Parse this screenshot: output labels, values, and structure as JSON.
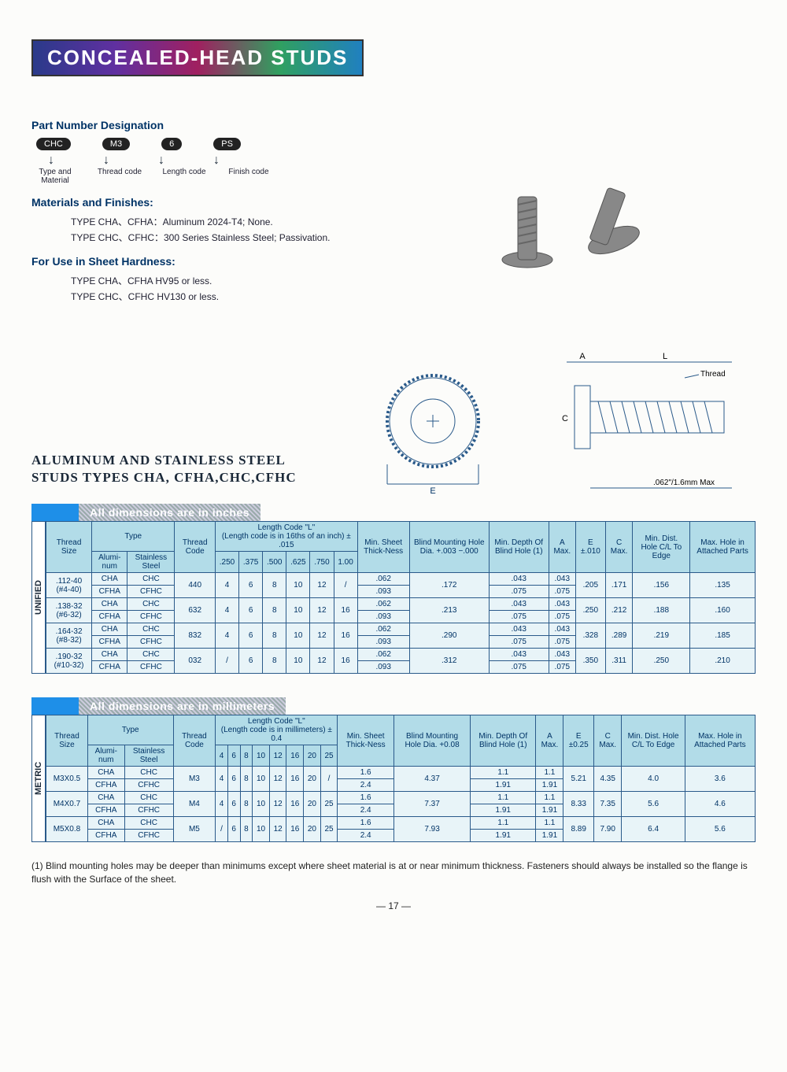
{
  "title": "CONCEALED-HEAD STUDS",
  "partNumber": {
    "heading": "Part Number Designation",
    "chips": [
      "CHC",
      "M3",
      "6",
      "PS"
    ],
    "labels": [
      "Type and Material",
      "Thread code",
      "Length code",
      "Finish code"
    ]
  },
  "materials": {
    "heading": "Materials and Finishes:",
    "lines": [
      "TYPE CHA、CFHA：Aluminum 2024-T4; None.",
      "TYPE CHC、CFHC：300 Series Stainless Steel; Passivation."
    ]
  },
  "hardness": {
    "heading": "For Use in Sheet Hardness:",
    "lines": [
      "TYPE CHA、CFHA  HV95 or less.",
      "TYPE CHC、CFHC  HV130 or less."
    ]
  },
  "productHeading": "ALUMINUM AND STAINLESS STEEL STUDS TYPES CHA, CFHA,CHC,CFHC",
  "diagram": {
    "labels": {
      "A": "A",
      "L": "L",
      "Thread": "Thread",
      "C": "C",
      "E": "E"
    },
    "note": ".062\"/1.6mm Max"
  },
  "unified": {
    "banner": "All dimensions are in inches",
    "vlabel": "UNIFIED",
    "lengthHeader": "Length Code \"L\"",
    "lengthSub": "(Length code is in 16ths of an inch) ± .015",
    "lengthCols": [
      ".250",
      ".375",
      ".500",
      ".625",
      ".750",
      "1.00"
    ],
    "headers": {
      "threadSize": "Thread Size",
      "type": "Type",
      "alum": "Alumi-num",
      "ss": "Stainless Steel",
      "threadCode": "Thread Code",
      "minSheet": "Min. Sheet Thick-Ness",
      "blind": "Blind Mounting Hole Dia. +.003 −.000",
      "minDepth": "Min. Depth Of Blind Hole (1)",
      "A": "A Max.",
      "E": "E ±.010",
      "C": "C Max.",
      "minDist": "Min. Dist. Hole C/L To Edge",
      "maxHole": "Max. Hole in Attached Parts"
    },
    "rows": [
      {
        "size": ".112-40 (#4-40)",
        "code": "440",
        "len": [
          "4",
          "6",
          "8",
          "10",
          "12",
          "/"
        ],
        "st1": ".062",
        "st2": ".093",
        "blind": ".172",
        "d1": ".043",
        "d2": ".075",
        "a1": ".043",
        "a2": ".075",
        "E": ".205",
        "C": ".171",
        "dist": ".156",
        "max": ".135"
      },
      {
        "size": ".138-32 (#6-32)",
        "code": "632",
        "len": [
          "4",
          "6",
          "8",
          "10",
          "12",
          "16"
        ],
        "st1": ".062",
        "st2": ".093",
        "blind": ".213",
        "d1": ".043",
        "d2": ".075",
        "a1": ".043",
        "a2": ".075",
        "E": ".250",
        "C": ".212",
        "dist": ".188",
        "max": ".160"
      },
      {
        "size": ".164-32 (#8-32)",
        "code": "832",
        "len": [
          "4",
          "6",
          "8",
          "10",
          "12",
          "16"
        ],
        "st1": ".062",
        "st2": ".093",
        "blind": ".290",
        "d1": ".043",
        "d2": ".075",
        "a1": ".043",
        "a2": ".075",
        "E": ".328",
        "C": ".289",
        "dist": ".219",
        "max": ".185"
      },
      {
        "size": ".190-32 (#10-32)",
        "code": "032",
        "len": [
          "/",
          "6",
          "8",
          "10",
          "12",
          "16"
        ],
        "st1": ".062",
        "st2": ".093",
        "blind": ".312",
        "d1": ".043",
        "d2": ".075",
        "a1": ".043",
        "a2": ".075",
        "E": ".350",
        "C": ".311",
        "dist": ".250",
        "max": ".210"
      }
    ]
  },
  "metric": {
    "banner": "All dimensions are in millimeters",
    "vlabel": "METRIC",
    "lengthHeader": "Length Code \"L\"",
    "lengthSub": "(Length code is in millimeters) ± 0.4",
    "lengthCols": [
      "4",
      "6",
      "8",
      "10",
      "12",
      "16",
      "20",
      "25"
    ],
    "headers": {
      "blind": "Blind Mounting Hole Dia. +0.08",
      "E": "E ±0.25"
    },
    "rows": [
      {
        "size": "M3X0.5",
        "code": "M3",
        "len": [
          "4",
          "6",
          "8",
          "10",
          "12",
          "16",
          "20",
          "/"
        ],
        "st1": "1.6",
        "st2": "2.4",
        "blind": "4.37",
        "d1": "1.1",
        "d2": "1.91",
        "a1": "1.1",
        "a2": "1.91",
        "E": "5.21",
        "C": "4.35",
        "dist": "4.0",
        "max": "3.6"
      },
      {
        "size": "M4X0.7",
        "code": "M4",
        "len": [
          "4",
          "6",
          "8",
          "10",
          "12",
          "16",
          "20",
          "25"
        ],
        "st1": "1.6",
        "st2": "2.4",
        "blind": "7.37",
        "d1": "1.1",
        "d2": "1.91",
        "a1": "1.1",
        "a2": "1.91",
        "E": "8.33",
        "C": "7.35",
        "dist": "5.6",
        "max": "4.6"
      },
      {
        "size": "M5X0.8",
        "code": "M5",
        "len": [
          "/",
          "6",
          "8",
          "10",
          "12",
          "16",
          "20",
          "25"
        ],
        "st1": "1.6",
        "st2": "2.4",
        "blind": "7.93",
        "d1": "1.1",
        "d2": "1.91",
        "a1": "1.1",
        "a2": "1.91",
        "E": "8.89",
        "C": "7.90",
        "dist": "6.4",
        "max": "5.6"
      }
    ]
  },
  "typePair": {
    "r1a": "CHA",
    "r1b": "CHC",
    "r2a": "CFHA",
    "r2b": "CFHC"
  },
  "footnote": "(1) Blind mounting holes may be deeper than minimums except where sheet material is at or near minimum thickness. Fasteners should always be installed so the flange is flush with the Surface of the sheet.",
  "pageNum": "— 17 —",
  "colors": {
    "headerBg": "#b2dce8",
    "cellBg": "#e8f4f8",
    "border": "#2a5a8a",
    "tabBlue": "#1e8fe8"
  }
}
